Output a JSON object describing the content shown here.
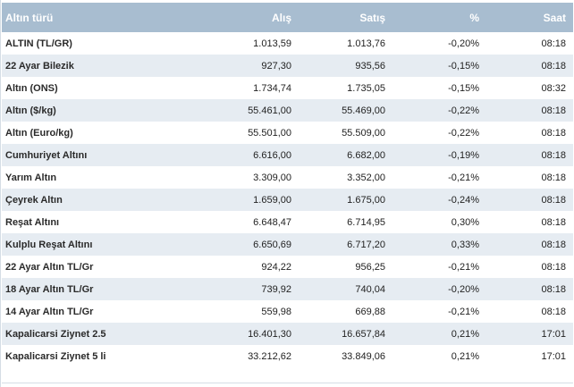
{
  "table": {
    "headers": {
      "name": "Altın türü",
      "buy": "Alış",
      "sell": "Satış",
      "change": "%",
      "time": "Saat"
    },
    "rows": [
      {
        "name": "ALTIN (TL/GR)",
        "buy": "1.013,59",
        "sell": "1.013,76",
        "change": "-0,20%",
        "time": "08:18"
      },
      {
        "name": "22 Ayar Bilezik",
        "buy": "927,30",
        "sell": "935,56",
        "change": "-0,15%",
        "time": "08:18"
      },
      {
        "name": "Altın (ONS)",
        "buy": "1.734,74",
        "sell": "1.735,05",
        "change": "-0,15%",
        "time": "08:32"
      },
      {
        "name": "Altın ($/kg)",
        "buy": "55.461,00",
        "sell": "55.469,00",
        "change": "-0,22%",
        "time": "08:18"
      },
      {
        "name": "Altın (Euro/kg)",
        "buy": "55.501,00",
        "sell": "55.509,00",
        "change": "-0,22%",
        "time": "08:18"
      },
      {
        "name": "Cumhuriyet Altını",
        "buy": "6.616,00",
        "sell": "6.682,00",
        "change": "-0,19%",
        "time": "08:18"
      },
      {
        "name": "Yarım Altın",
        "buy": "3.309,00",
        "sell": "3.352,00",
        "change": "-0,21%",
        "time": "08:18"
      },
      {
        "name": "Çeyrek Altın",
        "buy": "1.659,00",
        "sell": "1.675,00",
        "change": "-0,24%",
        "time": "08:18"
      },
      {
        "name": "Reşat Altını",
        "buy": "6.648,47",
        "sell": "6.714,95",
        "change": "0,30%",
        "time": "08:18"
      },
      {
        "name": "Kulplu Reşat Altını",
        "buy": "6.650,69",
        "sell": "6.717,20",
        "change": "0,33%",
        "time": "08:18"
      },
      {
        "name": "22 Ayar Altın TL/Gr",
        "buy": "924,22",
        "sell": "956,25",
        "change": "-0,21%",
        "time": "08:18"
      },
      {
        "name": "18 Ayar Altın TL/Gr",
        "buy": "739,92",
        "sell": "740,04",
        "change": "-0,20%",
        "time": "08:18"
      },
      {
        "name": "14 Ayar Altın TL/Gr",
        "buy": "559,98",
        "sell": "669,88",
        "change": "-0,21%",
        "time": "08:18"
      },
      {
        "name": "Kapalicarsi Ziynet 2.5",
        "buy": "16.401,30",
        "sell": "16.657,84",
        "change": "0,21%",
        "time": "17:01"
      },
      {
        "name": "Kapalicarsi Ziynet 5 li",
        "buy": "33.212,62",
        "sell": "33.849,06",
        "change": "0,21%",
        "time": "17:01"
      }
    ]
  },
  "colors": {
    "header_bg": "#a8bdd0",
    "header_text": "#ffffff",
    "row_alt_bg": "#e6ecf2",
    "row_bg": "#ffffff"
  }
}
